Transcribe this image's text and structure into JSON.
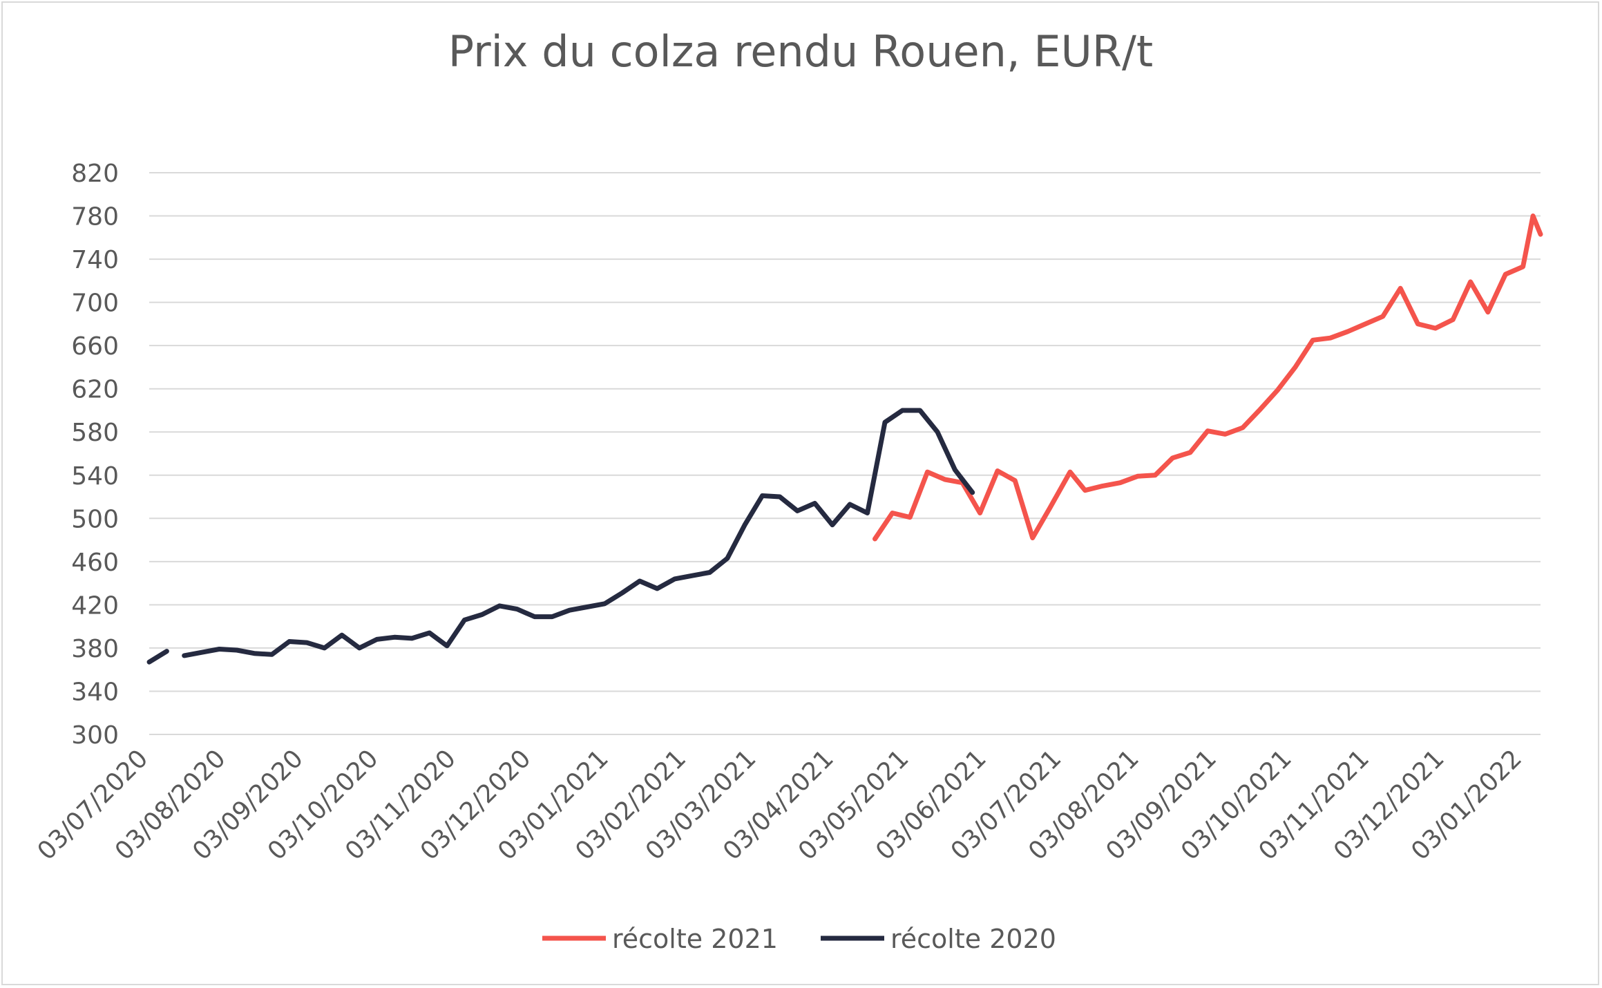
{
  "chart_data": {
    "type": "line",
    "title": "Prix du colza rendu Rouen, EUR/t",
    "xlabel": "",
    "ylabel": "",
    "ylim": [
      300,
      820
    ],
    "yticks": [
      300,
      340,
      380,
      420,
      460,
      500,
      540,
      580,
      620,
      660,
      700,
      740,
      780,
      820
    ],
    "xlim": [
      "2020-07-03",
      "2022-01-10"
    ],
    "x_ticks": [
      {
        "date": "2020-07-03",
        "label": "03/07/2020"
      },
      {
        "date": "2020-08-03",
        "label": "03/08/2020"
      },
      {
        "date": "2020-09-03",
        "label": "03/09/2020"
      },
      {
        "date": "2020-10-03",
        "label": "03/10/2020"
      },
      {
        "date": "2020-11-03",
        "label": "03/11/2020"
      },
      {
        "date": "2020-12-03",
        "label": "03/12/2020"
      },
      {
        "date": "2021-01-03",
        "label": "03/01/2021"
      },
      {
        "date": "2021-02-03",
        "label": "03/02/2021"
      },
      {
        "date": "2021-03-03",
        "label": "03/03/2021"
      },
      {
        "date": "2021-04-03",
        "label": "03/04/2021"
      },
      {
        "date": "2021-05-03",
        "label": "03/05/2021"
      },
      {
        "date": "2021-06-03",
        "label": "03/06/2021"
      },
      {
        "date": "2021-07-03",
        "label": "03/07/2021"
      },
      {
        "date": "2021-08-03",
        "label": "03/08/2021"
      },
      {
        "date": "2021-09-03",
        "label": "03/09/2021"
      },
      {
        "date": "2021-10-03",
        "label": "03/10/2021"
      },
      {
        "date": "2021-11-03",
        "label": "03/11/2021"
      },
      {
        "date": "2021-12-03",
        "label": "03/12/2021"
      },
      {
        "date": "2022-01-03",
        "label": "03/01/2022"
      }
    ],
    "grid": true,
    "legend": "bottom",
    "series": [
      {
        "name": "récolte 2021",
        "color": "#f4544c",
        "points": [
          [
            "2021-04-19",
            481
          ],
          [
            "2021-04-26",
            505
          ],
          [
            "2021-05-03",
            501
          ],
          [
            "2021-05-10",
            543
          ],
          [
            "2021-05-17",
            536
          ],
          [
            "2021-05-24",
            533
          ],
          [
            "2021-05-31",
            505
          ],
          [
            "2021-06-07",
            544
          ],
          [
            "2021-06-14",
            535
          ],
          [
            "2021-06-21",
            482
          ],
          [
            "2021-06-28",
            510
          ],
          [
            "2021-07-06",
            543
          ],
          [
            "2021-07-12",
            526
          ],
          [
            "2021-07-19",
            530
          ],
          [
            "2021-07-26",
            533
          ],
          [
            "2021-08-02",
            539
          ],
          [
            "2021-08-09",
            540
          ],
          [
            "2021-08-16",
            556
          ],
          [
            "2021-08-23",
            561
          ],
          [
            "2021-08-30",
            581
          ],
          [
            "2021-09-06",
            578
          ],
          [
            "2021-09-13",
            584
          ],
          [
            "2021-09-20",
            601
          ],
          [
            "2021-09-27",
            619
          ],
          [
            "2021-10-04",
            640
          ],
          [
            "2021-10-11",
            665
          ],
          [
            "2021-10-18",
            667
          ],
          [
            "2021-10-25",
            673
          ],
          [
            "2021-11-01",
            680
          ],
          [
            "2021-11-08",
            687
          ],
          [
            "2021-11-15",
            713
          ],
          [
            "2021-11-22",
            680
          ],
          [
            "2021-11-29",
            676
          ],
          [
            "2021-12-06",
            684
          ],
          [
            "2021-12-13",
            719
          ],
          [
            "2021-12-20",
            691
          ],
          [
            "2021-12-27",
            726
          ],
          [
            "2022-01-03",
            733
          ],
          [
            "2022-01-07",
            780
          ],
          [
            "2022-01-10",
            763
          ]
        ]
      },
      {
        "name": "récolte 2020",
        "color": "#252a40",
        "points": [
          [
            "2020-07-03",
            367
          ],
          [
            "2020-07-10",
            377
          ],
          null,
          [
            "2020-07-17",
            373
          ],
          [
            "2020-07-24",
            376
          ],
          [
            "2020-07-31",
            379
          ],
          [
            "2020-08-07",
            378
          ],
          [
            "2020-08-14",
            375
          ],
          [
            "2020-08-21",
            374
          ],
          [
            "2020-08-28",
            386
          ],
          [
            "2020-09-04",
            385
          ],
          [
            "2020-09-11",
            380
          ],
          [
            "2020-09-18",
            392
          ],
          [
            "2020-09-25",
            380
          ],
          [
            "2020-10-02",
            388
          ],
          [
            "2020-10-09",
            390
          ],
          [
            "2020-10-16",
            389
          ],
          [
            "2020-10-23",
            394
          ],
          [
            "2020-10-30",
            382
          ],
          [
            "2020-11-06",
            406
          ],
          [
            "2020-11-13",
            411
          ],
          [
            "2020-11-20",
            419
          ],
          [
            "2020-11-27",
            416
          ],
          [
            "2020-12-04",
            409
          ],
          [
            "2020-12-11",
            409
          ],
          [
            "2020-12-18",
            415
          ],
          [
            "2020-12-25",
            418
          ],
          [
            "2021-01-01",
            421
          ],
          [
            "2021-01-08",
            431
          ],
          [
            "2021-01-15",
            442
          ],
          [
            "2021-01-22",
            435
          ],
          [
            "2021-01-29",
            444
          ],
          [
            "2021-02-05",
            447
          ],
          [
            "2021-02-12",
            450
          ],
          [
            "2021-02-19",
            463
          ],
          [
            "2021-02-26",
            494
          ],
          [
            "2021-03-05",
            521
          ],
          [
            "2021-03-12",
            520
          ],
          [
            "2021-03-19",
            507
          ],
          [
            "2021-03-26",
            514
          ],
          [
            "2021-04-02",
            494
          ],
          [
            "2021-04-09",
            513
          ],
          [
            "2021-04-16",
            505
          ],
          [
            "2021-04-23",
            589
          ],
          [
            "2021-04-30",
            600
          ],
          [
            "2021-05-07",
            600
          ],
          [
            "2021-05-14",
            580
          ],
          [
            "2021-05-21",
            545
          ],
          [
            "2021-05-28",
            524
          ]
        ]
      }
    ]
  }
}
